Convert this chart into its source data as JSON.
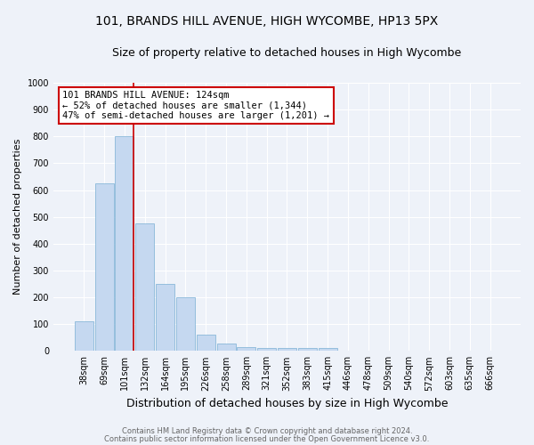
{
  "title1": "101, BRANDS HILL AVENUE, HIGH WYCOMBE, HP13 5PX",
  "title2": "Size of property relative to detached houses in High Wycombe",
  "xlabel": "Distribution of detached houses by size in High Wycombe",
  "ylabel": "Number of detached properties",
  "categories": [
    "38sqm",
    "69sqm",
    "101sqm",
    "132sqm",
    "164sqm",
    "195sqm",
    "226sqm",
    "258sqm",
    "289sqm",
    "321sqm",
    "352sqm",
    "383sqm",
    "415sqm",
    "446sqm",
    "478sqm",
    "509sqm",
    "540sqm",
    "572sqm",
    "603sqm",
    "635sqm",
    "666sqm"
  ],
  "values": [
    110,
    625,
    800,
    475,
    250,
    200,
    60,
    27,
    15,
    10,
    10,
    10,
    10,
    0,
    0,
    0,
    0,
    0,
    0,
    0,
    0
  ],
  "bar_color": "#c5d8f0",
  "bar_edge_color": "#7aafd4",
  "vline_x": 2.45,
  "annotation_text": "101 BRANDS HILL AVENUE: 124sqm\n← 52% of detached houses are smaller (1,344)\n47% of semi-detached houses are larger (1,201) →",
  "annotation_box_color": "#ffffff",
  "annotation_box_edge_color": "#cc0000",
  "vline_color": "#cc0000",
  "ylim": [
    0,
    1000
  ],
  "yticks": [
    0,
    100,
    200,
    300,
    400,
    500,
    600,
    700,
    800,
    900,
    1000
  ],
  "footer1": "Contains HM Land Registry data © Crown copyright and database right 2024.",
  "footer2": "Contains public sector information licensed under the Open Government Licence v3.0.",
  "bg_color": "#eef2f9",
  "grid_color": "#ffffff",
  "title1_fontsize": 10,
  "title2_fontsize": 9,
  "annotation_fontsize": 7.5,
  "ylabel_fontsize": 8,
  "xlabel_fontsize": 9,
  "tick_fontsize": 7,
  "footer_fontsize": 6
}
